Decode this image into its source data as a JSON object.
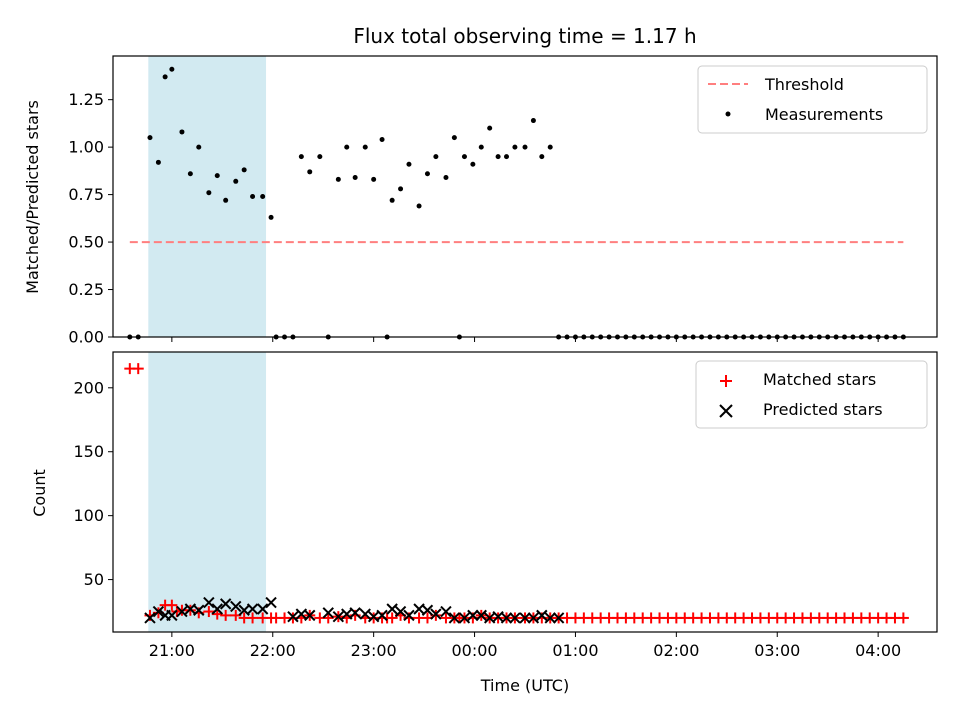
{
  "chart_data": [
    {
      "type": "scatter",
      "title": "Flux total observing time = 1.17 h",
      "xlabel": "",
      "ylabel": "Matched/Predicted stars",
      "ylim": [
        0,
        1.48
      ],
      "yticks": [
        "0.00",
        "0.25",
        "0.50",
        "0.75",
        "1.00",
        "1.25"
      ],
      "xlim": [
        "20:25",
        "04:35"
      ],
      "grid": false,
      "legend_position": "top-right",
      "shaded_interval": {
        "start": "20:46",
        "end": "21:56"
      },
      "series": [
        {
          "name": "Threshold",
          "kind": "dashed-line",
          "color": "#ff7f7f",
          "x": [
            "20:35",
            "04:15"
          ],
          "y": [
            0.5,
            0.5
          ]
        },
        {
          "name": "Measurements",
          "kind": "points",
          "color": "#000000",
          "x": [
            "20:35",
            "20:40",
            "20:47",
            "20:52",
            "20:56",
            "21:00",
            "21:06",
            "21:11",
            "21:16",
            "21:22",
            "21:27",
            "21:32",
            "21:38",
            "21:43",
            "21:48",
            "21:54",
            "21:59",
            "22:02",
            "22:07",
            "22:12",
            "22:17",
            "22:22",
            "22:28",
            "22:33",
            "22:39",
            "22:44",
            "22:49",
            "22:55",
            "23:00",
            "23:05",
            "23:08",
            "23:11",
            "23:16",
            "23:21",
            "23:27",
            "23:32",
            "23:37",
            "23:43",
            "23:48",
            "23:51",
            "23:54",
            "23:59",
            "00:04",
            "00:09",
            "00:14",
            "00:19",
            "00:24",
            "00:30",
            "00:35",
            "00:40",
            "00:45",
            "00:50",
            "00:55",
            "01:00",
            "01:05",
            "01:10",
            "01:15",
            "01:20",
            "01:25",
            "01:30",
            "01:35",
            "01:40",
            "01:45",
            "01:50",
            "01:55",
            "02:00",
            "02:05",
            "02:10",
            "02:15",
            "02:20",
            "02:25",
            "02:30",
            "02:35",
            "02:40",
            "02:45",
            "02:50",
            "02:55",
            "03:00",
            "03:05",
            "03:10",
            "03:15",
            "03:20",
            "03:25",
            "03:30",
            "03:35",
            "03:40",
            "03:45",
            "03:50",
            "03:55",
            "04:00",
            "04:05",
            "04:10",
            "04:15"
          ],
          "y": [
            0,
            0,
            1.05,
            0.92,
            1.37,
            1.41,
            1.08,
            0.86,
            1.0,
            0.76,
            0.85,
            0.72,
            0.82,
            0.88,
            0.74,
            0.74,
            0.63,
            0,
            0,
            0,
            0.95,
            0.87,
            0.95,
            0,
            0.83,
            1.0,
            0.84,
            1.0,
            0.83,
            1.04,
            0,
            0.72,
            0.78,
            0.91,
            0.69,
            0.86,
            0.95,
            0.84,
            1.05,
            0,
            0.95,
            0.91,
            1.0,
            1.1,
            0.95,
            0.95,
            1.0,
            1.0,
            1.14,
            0.95,
            1.0,
            0,
            0,
            0,
            0,
            0,
            0,
            0,
            0,
            0,
            0,
            0,
            0,
            0,
            0,
            0,
            0,
            0,
            0,
            0,
            0,
            0,
            0,
            0,
            0,
            0,
            0,
            0,
            0,
            0,
            0,
            0,
            0,
            0,
            0,
            0,
            0,
            0,
            0,
            0,
            0,
            0,
            0
          ]
        }
      ]
    },
    {
      "type": "scatter",
      "title": "",
      "xlabel": "Time (UTC)",
      "ylabel": "Count",
      "ylim": [
        9,
        228
      ],
      "yticks": [
        "50",
        "100",
        "150",
        "200"
      ],
      "xlim": [
        "20:25",
        "04:35"
      ],
      "xticks": [
        "21:00",
        "22:00",
        "23:00",
        "00:00",
        "01:00",
        "02:00",
        "03:00",
        "04:00"
      ],
      "grid": false,
      "legend_position": "top-right",
      "shaded_interval": {
        "start": "20:46",
        "end": "21:56"
      },
      "series": [
        {
          "name": "Matched stars",
          "marker": "plus",
          "color": "#ff0000",
          "x": [
            "20:35",
            "20:40",
            "20:47",
            "20:52",
            "20:56",
            "21:00",
            "21:03",
            "21:06",
            "21:11",
            "21:16",
            "21:22",
            "21:27",
            "21:32",
            "21:38",
            "21:43",
            "21:48",
            "21:54",
            "21:59",
            "22:02",
            "22:07",
            "22:12",
            "22:17",
            "22:22",
            "22:28",
            "22:33",
            "22:39",
            "22:44",
            "22:49",
            "22:55",
            "23:00",
            "23:05",
            "23:08",
            "23:11",
            "23:16",
            "23:21",
            "23:27",
            "23:32",
            "23:37",
            "23:43",
            "23:48",
            "23:51",
            "23:54",
            "23:59",
            "00:04",
            "00:09",
            "00:14",
            "00:19",
            "00:24",
            "00:30",
            "00:35",
            "00:40",
            "00:45",
            "00:50",
            "00:55",
            "01:00",
            "01:05",
            "01:10",
            "01:15",
            "01:20",
            "01:25",
            "01:30",
            "01:35",
            "01:40",
            "01:45",
            "01:50",
            "01:55",
            "02:00",
            "02:05",
            "02:10",
            "02:15",
            "02:20",
            "02:25",
            "02:30",
            "02:35",
            "02:40",
            "02:45",
            "02:50",
            "02:55",
            "03:00",
            "03:05",
            "03:10",
            "03:15",
            "03:20",
            "03:25",
            "03:30",
            "03:35",
            "03:40",
            "03:45",
            "03:50",
            "03:55",
            "04:00",
            "04:05",
            "04:10",
            "04:15"
          ],
          "y": [
            215,
            215,
            22,
            24,
            30,
            30,
            25,
            26,
            26,
            24,
            25,
            23,
            22,
            22,
            20,
            20,
            20,
            20,
            20,
            20,
            20,
            20,
            22,
            20,
            20,
            21,
            20,
            22,
            20,
            20,
            20,
            20,
            20,
            22,
            20,
            20,
            20,
            22,
            20,
            20,
            20,
            20,
            20,
            22,
            20,
            20,
            20,
            20,
            20,
            20,
            20,
            20,
            20,
            20,
            20,
            20,
            20,
            20,
            20,
            20,
            20,
            20,
            20,
            20,
            20,
            20,
            20,
            20,
            20,
            20,
            20,
            20,
            20,
            20,
            20,
            20,
            20,
            20,
            20,
            20,
            20,
            20,
            20,
            20,
            20,
            20,
            20,
            20,
            20,
            20,
            20,
            20,
            20,
            20
          ]
        },
        {
          "name": "Predicted stars",
          "marker": "x",
          "color": "#000000",
          "x": [
            "20:47",
            "20:52",
            "20:56",
            "21:00",
            "21:06",
            "21:11",
            "21:16",
            "21:22",
            "21:27",
            "21:32",
            "21:38",
            "21:43",
            "21:48",
            "21:54",
            "21:59",
            "22:12",
            "22:17",
            "22:22",
            "22:33",
            "22:39",
            "22:44",
            "22:49",
            "22:55",
            "23:00",
            "23:05",
            "23:11",
            "23:16",
            "23:21",
            "23:27",
            "23:32",
            "23:37",
            "23:43",
            "23:48",
            "23:54",
            "23:59",
            "00:04",
            "00:09",
            "00:14",
            "00:19",
            "00:24",
            "00:30",
            "00:35",
            "00:40",
            "00:45",
            "00:50"
          ],
          "y": [
            20,
            25,
            22,
            22,
            25,
            27,
            26,
            32,
            27,
            31,
            29,
            26,
            27,
            27,
            32,
            21,
            23,
            22,
            24,
            21,
            23,
            24,
            23,
            21,
            22,
            27,
            25,
            22,
            27,
            26,
            23,
            25,
            20,
            20,
            22,
            22,
            20,
            21,
            20,
            20,
            20,
            20,
            22,
            20,
            20
          ]
        }
      ]
    }
  ]
}
